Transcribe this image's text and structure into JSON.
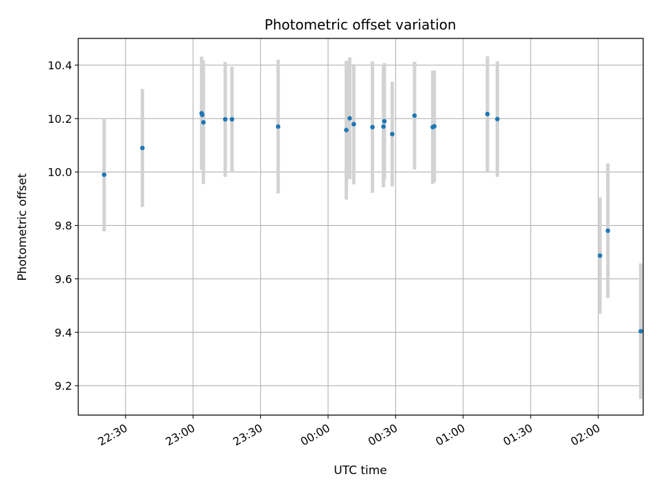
{
  "chart_data": {
    "type": "scatter",
    "title": "Photometric offset variation",
    "xlabel": "UTC time",
    "ylabel": "Photometric offset",
    "x_ticks": [
      "22:30",
      "23:00",
      "23:30",
      "00:00",
      "00:30",
      "01:00",
      "01:30",
      "02:00"
    ],
    "y_ticks": [
      "9.2",
      "9.4",
      "9.6",
      "9.8",
      "10.0",
      "10.2",
      "10.4"
    ],
    "x_unit": "UTC time (minutes after 22:00)",
    "xlim": [
      9,
      260
    ],
    "ylim": [
      9.09,
      10.5
    ],
    "grid": true,
    "point_color": "#1f77b4",
    "errorbar_color": "#d3d3d3",
    "points": [
      {
        "x": 20.5,
        "y": 9.99,
        "err": 0.212
      },
      {
        "x": 37.5,
        "y": 10.09,
        "err": 0.221
      },
      {
        "x": 63.8,
        "y": 10.22,
        "err": 0.212
      },
      {
        "x": 64.1,
        "y": 10.214,
        "err": 0.2
      },
      {
        "x": 64.6,
        "y": 10.186,
        "err": 0.231
      },
      {
        "x": 74.3,
        "y": 10.197,
        "err": 0.215
      },
      {
        "x": 77.3,
        "y": 10.197,
        "err": 0.197
      },
      {
        "x": 97.8,
        "y": 10.17,
        "err": 0.25
      },
      {
        "x": 128.1,
        "y": 10.157,
        "err": 0.26
      },
      {
        "x": 129.6,
        "y": 10.201,
        "err": 0.228
      },
      {
        "x": 131.4,
        "y": 10.179,
        "err": 0.225
      },
      {
        "x": 139.7,
        "y": 10.168,
        "err": 0.246
      },
      {
        "x": 144.6,
        "y": 10.17,
        "err": 0.227
      },
      {
        "x": 145.0,
        "y": 10.19,
        "err": 0.218
      },
      {
        "x": 148.5,
        "y": 10.142,
        "err": 0.196
      },
      {
        "x": 158.4,
        "y": 10.211,
        "err": 0.202
      },
      {
        "x": 166.5,
        "y": 10.168,
        "err": 0.212
      },
      {
        "x": 167.2,
        "y": 10.171,
        "err": 0.209
      },
      {
        "x": 190.8,
        "y": 10.217,
        "err": 0.216
      },
      {
        "x": 195.2,
        "y": 10.198,
        "err": 0.216
      },
      {
        "x": 240.8,
        "y": 9.687,
        "err": 0.218
      },
      {
        "x": 244.3,
        "y": 9.78,
        "err": 0.252
      },
      {
        "x": 258.9,
        "y": 9.404,
        "err": 0.254
      }
    ]
  }
}
